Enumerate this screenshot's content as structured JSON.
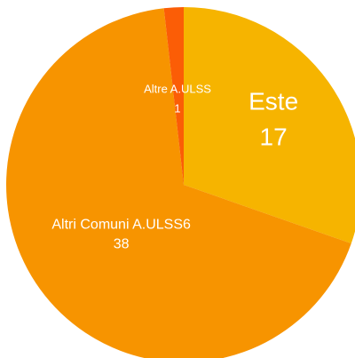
{
  "chart_data": {
    "type": "pie",
    "categories": [
      "Este",
      "Altri Comuni A.ULSS6",
      "Altre A.ULSS"
    ],
    "values": [
      17,
      38,
      1
    ],
    "colors": [
      "#f6b400",
      "#f79400",
      "#fb5d06"
    ]
  }
}
